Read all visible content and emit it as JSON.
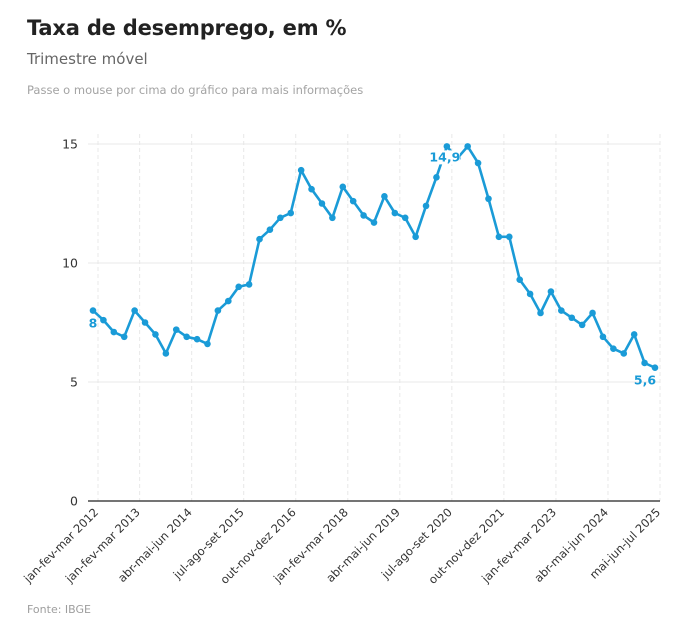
{
  "header": {
    "title": "Taxa de desemprego, em %",
    "subtitle": "Trimestre móvel",
    "hint": "Passe o mouse por cima do gráfico para mais informações"
  },
  "footer": {
    "source": "Fonte: IBGE"
  },
  "colors": {
    "line": "#1a9bd7",
    "grid": "#e8e8e8",
    "axis": "#222222"
  },
  "chart_data": {
    "type": "line",
    "title": "Taxa de desemprego, em %",
    "subtitle": "Trimestre móvel",
    "xlabel": "",
    "ylabel": "",
    "ylim": [
      0,
      15
    ],
    "yticks": [
      0,
      5,
      10,
      15
    ],
    "grid": true,
    "legend": "none",
    "x_tick_labels": [
      {
        "index": 0,
        "label": "jan-fev-mar 2012"
      },
      {
        "index": 4,
        "label": "jan-fev-mar 2013"
      },
      {
        "index": 9,
        "label": "abr-mai-jun 2014"
      },
      {
        "index": 14,
        "label": "jul-ago-set 2015"
      },
      {
        "index": 19,
        "label": "out-nov-dez 2016"
      },
      {
        "index": 24,
        "label": "jan-fev-mar 2018"
      },
      {
        "index": 29,
        "label": "abr-mai-jun 2019"
      },
      {
        "index": 34,
        "label": "jul-ago-set 2020"
      },
      {
        "index": 39,
        "label": "out-nov-dez 2021"
      },
      {
        "index": 44,
        "label": "jan-fev-mar 2023"
      },
      {
        "index": 49,
        "label": "abr-mai-jun 2024"
      },
      {
        "index": 54,
        "label": "mai-jun-jul 2025"
      }
    ],
    "series": [
      {
        "name": "Taxa de desemprego",
        "values": [
          8.0,
          7.6,
          7.1,
          6.9,
          8.0,
          7.5,
          7.0,
          6.2,
          7.2,
          6.9,
          6.8,
          6.6,
          8.0,
          8.4,
          9.0,
          9.1,
          11.0,
          11.4,
          11.9,
          12.1,
          13.9,
          13.1,
          12.5,
          11.9,
          13.2,
          12.6,
          12.0,
          11.7,
          12.8,
          12.1,
          11.9,
          11.1,
          12.4,
          13.6,
          14.9,
          14.4,
          14.9,
          14.2,
          12.7,
          11.1,
          11.1,
          9.3,
          8.7,
          7.9,
          8.8,
          8.0,
          7.7,
          7.4,
          7.9,
          6.9,
          6.4,
          6.2,
          7.0,
          5.8,
          5.6
        ]
      }
    ],
    "annotations": [
      {
        "index": 0,
        "text": "8",
        "position": "below"
      },
      {
        "index": 34,
        "text": "14,9",
        "position": "below"
      },
      {
        "index": 54,
        "text": "5,6",
        "position": "below"
      }
    ]
  }
}
